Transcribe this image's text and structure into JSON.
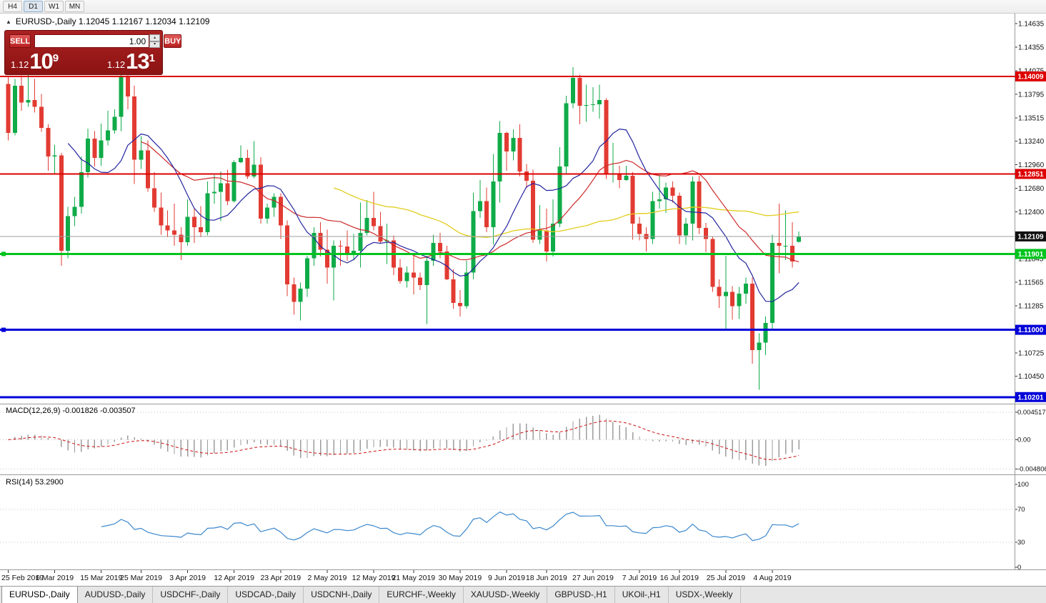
{
  "toolbar": {
    "timeframes": [
      {
        "label": "H4",
        "active": false
      },
      {
        "label": "D1",
        "active": true
      },
      {
        "label": "W1",
        "active": false
      },
      {
        "label": "MN",
        "active": false
      }
    ]
  },
  "chart_header": {
    "title": "EURUSD-,Daily  1.12045 1.12167 1.12034 1.12109"
  },
  "icons": {
    "collapse": "▲",
    "lot_up": "▴",
    "lot_down": "▾"
  },
  "trade_panel": {
    "sell_label": "SELL",
    "buy_label": "BUY",
    "lot_size": "1.00",
    "sell_price_prefix": "1.12",
    "sell_price_main": "10",
    "sell_price_pip": "9",
    "buy_price_prefix": "1.12",
    "buy_price_main": "13",
    "buy_price_pip": "1"
  },
  "indicators": {
    "macd_label": "MACD(12,26,9) -0.001826 -0.003507",
    "rsi_label": "RSI(14) 53.2900"
  },
  "tabs": [
    {
      "label": "EURUSD-,Daily",
      "active": true
    },
    {
      "label": "AUDUSD-,Daily",
      "active": false
    },
    {
      "label": "USDCHF-,Daily",
      "active": false
    },
    {
      "label": "USDCAD-,Daily",
      "active": false
    },
    {
      "label": "USDCNH-,Daily",
      "active": false
    },
    {
      "label": "EURCHF-,Weekly",
      "active": false
    },
    {
      "label": "XAUUSD-,Weekly",
      "active": false
    },
    {
      "label": "GBPUSD-,H1",
      "active": false
    },
    {
      "label": "UKOil-,H1",
      "active": false
    },
    {
      "label": "USDX-,Weekly",
      "active": false
    }
  ],
  "chart_data": {
    "type": "candlestick",
    "symbol": "EURUSD-",
    "timeframe": "Daily",
    "quote": {
      "open": 1.12045,
      "high": 1.12167,
      "low": 1.12034,
      "close": 1.12109
    },
    "colors": {
      "bull": "#0fab48",
      "bear": "#e23b32",
      "ma_fast": "#24249e",
      "ma_mid": "#cd2929",
      "ma_slow": "#e2cd1c",
      "macd_histogram": "#9c9c9c",
      "macd_signal": "#cc1111",
      "rsi_line": "#3b87cc",
      "price_tag": "#111111",
      "resistance": "#dd0000",
      "support_green": "#00c41d",
      "support_blue": "#0000d8"
    },
    "price_axis_labels": [
      "1.14635",
      "1.14355",
      "1.14075",
      "1.13795",
      "1.13515",
      "1.13240",
      "1.12960",
      "1.12680",
      "1.12400",
      "1.11845",
      "1.11565",
      "1.11285",
      "1.10725",
      "1.10450"
    ],
    "hlines": [
      {
        "label": "1.14009",
        "value": 1.14009,
        "color": "#dd0000",
        "width": 2,
        "handle": false
      },
      {
        "label": "1.12851",
        "value": 1.12851,
        "color": "#dd0000",
        "width": 2,
        "handle": false
      },
      {
        "label": "1.11901",
        "value": 1.11901,
        "color": "#00c41d",
        "width": 3,
        "handle": true
      },
      {
        "label": "1.11000",
        "value": 1.11,
        "color": "#0000d8",
        "width": 3,
        "handle": true
      },
      {
        "label": "1.10201",
        "value": 1.10201,
        "color": "#0000d8",
        "width": 3,
        "handle": false
      }
    ],
    "current_price": {
      "label": "1.12109",
      "value": 1.12109
    },
    "macd_axis": [
      {
        "label": "0.004517",
        "value": 0.004517
      },
      {
        "label": "0.00",
        "value": 0
      },
      {
        "label": "-0.004806",
        "value": -0.004806
      }
    ],
    "rsi_axis": [
      {
        "label": "100",
        "value": 100
      },
      {
        "label": "70",
        "value": 70
      },
      {
        "label": "30",
        "value": 30
      },
      {
        "label": "0",
        "value": 0
      }
    ],
    "rsi_levels": [
      70,
      30
    ],
    "date_labels": [
      {
        "label": "25 Feb 2019",
        "index": 0
      },
      {
        "label": "6 Mar 2019",
        "index": 7
      },
      {
        "label": "15 Mar 2019",
        "index": 14
      },
      {
        "label": "25 Mar 2019",
        "index": 20
      },
      {
        "label": "3 Apr 2019",
        "index": 27
      },
      {
        "label": "12 Apr 2019",
        "index": 34
      },
      {
        "label": "23 Apr 2019",
        "index": 41
      },
      {
        "label": "2 May 2019",
        "index": 48
      },
      {
        "label": "12 May 2019",
        "index": 55
      },
      {
        "label": "21 May 2019",
        "index": 61
      },
      {
        "label": "30 May 2019",
        "index": 68
      },
      {
        "label": "9 Jun 2019",
        "index": 75
      },
      {
        "label": "18 Jun 2019",
        "index": 81
      },
      {
        "label": "27 Jun 2019",
        "index": 88
      },
      {
        "label": "7 Jul 2019",
        "index": 95
      },
      {
        "label": "16 Jul 2019",
        "index": 101
      },
      {
        "label": "25 Jul 2019",
        "index": 108
      },
      {
        "label": "4 Aug 2019",
        "index": 115
      }
    ],
    "candles": [
      [
        1.1392,
        1.14,
        1.1325,
        1.1334
      ],
      [
        1.1334,
        1.1398,
        1.1331,
        1.139
      ],
      [
        1.139,
        1.1402,
        1.136,
        1.137
      ],
      [
        1.137,
        1.1404,
        1.1365,
        1.1373
      ],
      [
        1.1373,
        1.1398,
        1.1358,
        1.1365
      ],
      [
        1.1365,
        1.138,
        1.1335,
        1.134
      ],
      [
        1.134,
        1.1344,
        1.1289,
        1.1306
      ],
      [
        1.1306,
        1.132,
        1.1285,
        1.1307
      ],
      [
        1.1307,
        1.131,
        1.1176,
        1.1194
      ],
      [
        1.1194,
        1.1246,
        1.1185,
        1.1235
      ],
      [
        1.1235,
        1.1258,
        1.1223,
        1.1246
      ],
      [
        1.1246,
        1.1306,
        1.1238,
        1.1287
      ],
      [
        1.1287,
        1.1339,
        1.1281,
        1.1327
      ],
      [
        1.1327,
        1.1336,
        1.1294,
        1.1304
      ],
      [
        1.1304,
        1.1345,
        1.1295,
        1.1325
      ],
      [
        1.1325,
        1.136,
        1.1319,
        1.1337
      ],
      [
        1.1337,
        1.1362,
        1.1333,
        1.1353
      ],
      [
        1.1353,
        1.1414,
        1.1336,
        1.1401
      ],
      [
        1.1401,
        1.1411,
        1.1362,
        1.1377
      ],
      [
        1.1377,
        1.139,
        1.1273,
        1.1302
      ],
      [
        1.1302,
        1.133,
        1.1291,
        1.1313
      ],
      [
        1.1313,
        1.1325,
        1.1264,
        1.1268
      ],
      [
        1.1268,
        1.1287,
        1.124,
        1.1245
      ],
      [
        1.1245,
        1.1263,
        1.1213,
        1.1224
      ],
      [
        1.1224,
        1.1242,
        1.121,
        1.1218
      ],
      [
        1.1218,
        1.125,
        1.12,
        1.1213
      ],
      [
        1.1213,
        1.1222,
        1.1183,
        1.1204
      ],
      [
        1.1204,
        1.1255,
        1.12,
        1.1234
      ],
      [
        1.1234,
        1.1244,
        1.1203,
        1.1222
      ],
      [
        1.1222,
        1.1247,
        1.121,
        1.1216
      ],
      [
        1.1216,
        1.1276,
        1.1212,
        1.1262
      ],
      [
        1.1262,
        1.1284,
        1.125,
        1.1264
      ],
      [
        1.1264,
        1.1288,
        1.1229,
        1.1274
      ],
      [
        1.1274,
        1.129,
        1.1248,
        1.1253
      ],
      [
        1.1253,
        1.1301,
        1.1251,
        1.1299
      ],
      [
        1.1299,
        1.1319,
        1.1298,
        1.1304
      ],
      [
        1.1304,
        1.1314,
        1.1279,
        1.1282
      ],
      [
        1.1282,
        1.1324,
        1.128,
        1.1296
      ],
      [
        1.1296,
        1.1305,
        1.1226,
        1.1232
      ],
      [
        1.1232,
        1.125,
        1.1226,
        1.1245
      ],
      [
        1.1245,
        1.1262,
        1.1234,
        1.1258
      ],
      [
        1.1258,
        1.1262,
        1.1208,
        1.1224
      ],
      [
        1.1224,
        1.123,
        1.114,
        1.1154
      ],
      [
        1.1154,
        1.1162,
        1.1118,
        1.1133
      ],
      [
        1.1133,
        1.1156,
        1.1111,
        1.1149
      ],
      [
        1.1149,
        1.1188,
        1.1139,
        1.1185
      ],
      [
        1.1185,
        1.1222,
        1.1176,
        1.1215
      ],
      [
        1.1215,
        1.1228,
        1.1187,
        1.1195
      ],
      [
        1.1195,
        1.1219,
        1.1155,
        1.1174
      ],
      [
        1.1174,
        1.1206,
        1.1135,
        1.12
      ],
      [
        1.12,
        1.1206,
        1.1176,
        1.1199
      ],
      [
        1.1199,
        1.1218,
        1.1182,
        1.119
      ],
      [
        1.119,
        1.1214,
        1.1183,
        1.1194
      ],
      [
        1.1194,
        1.1251,
        1.1174,
        1.1215
      ],
      [
        1.1215,
        1.1254,
        1.1212,
        1.1233
      ],
      [
        1.1233,
        1.1264,
        1.1218,
        1.1223
      ],
      [
        1.1223,
        1.124,
        1.1203,
        1.1205
      ],
      [
        1.1205,
        1.1226,
        1.1178,
        1.1206
      ],
      [
        1.1206,
        1.1212,
        1.1165,
        1.1174
      ],
      [
        1.1174,
        1.1184,
        1.1155,
        1.1158
      ],
      [
        1.1158,
        1.1175,
        1.115,
        1.1168
      ],
      [
        1.1168,
        1.1188,
        1.1142,
        1.1162
      ],
      [
        1.1162,
        1.1168,
        1.1147,
        1.1153
      ],
      [
        1.1153,
        1.1188,
        1.1107,
        1.1182
      ],
      [
        1.1182,
        1.1213,
        1.1176,
        1.1203
      ],
      [
        1.1203,
        1.1215,
        1.1185,
        1.1193
      ],
      [
        1.1193,
        1.12,
        1.1159,
        1.116
      ],
      [
        1.116,
        1.1172,
        1.1125,
        1.1132
      ],
      [
        1.1132,
        1.1147,
        1.1116,
        1.1128
      ],
      [
        1.1128,
        1.1182,
        1.1125,
        1.1168
      ],
      [
        1.1168,
        1.1263,
        1.116,
        1.1241
      ],
      [
        1.1241,
        1.1278,
        1.1233,
        1.1253
      ],
      [
        1.1253,
        1.1269,
        1.1216,
        1.1222
      ],
      [
        1.1222,
        1.1309,
        1.1201,
        1.1276
      ],
      [
        1.1276,
        1.1348,
        1.1251,
        1.1334
      ],
      [
        1.1334,
        1.1335,
        1.1289,
        1.1312
      ],
      [
        1.1312,
        1.1338,
        1.1301,
        1.1328
      ],
      [
        1.1328,
        1.1344,
        1.1282,
        1.1288
      ],
      [
        1.1288,
        1.1297,
        1.1268,
        1.1277
      ],
      [
        1.1277,
        1.129,
        1.1203,
        1.1207
      ],
      [
        1.1207,
        1.1248,
        1.1202,
        1.1218
      ],
      [
        1.1218,
        1.1244,
        1.1181,
        1.1193
      ],
      [
        1.1193,
        1.1255,
        1.1187,
        1.1226
      ],
      [
        1.1226,
        1.1317,
        1.1222,
        1.1294
      ],
      [
        1.1294,
        1.1378,
        1.1286,
        1.1369
      ],
      [
        1.1369,
        1.1412,
        1.1363,
        1.1399
      ],
      [
        1.1399,
        1.1403,
        1.1344,
        1.1366
      ],
      [
        1.1366,
        1.1391,
        1.1347,
        1.1367
      ],
      [
        1.1367,
        1.1388,
        1.1359,
        1.1368
      ],
      [
        1.1368,
        1.1391,
        1.1351,
        1.1373
      ],
      [
        1.1373,
        1.1375,
        1.1279,
        1.1285
      ],
      [
        1.1285,
        1.1322,
        1.1275,
        1.1285
      ],
      [
        1.1285,
        1.1295,
        1.1268,
        1.1278
      ],
      [
        1.1278,
        1.1295,
        1.1277,
        1.1283
      ],
      [
        1.1283,
        1.1287,
        1.1207,
        1.1226
      ],
      [
        1.1226,
        1.1234,
        1.1206,
        1.1214
      ],
      [
        1.1214,
        1.1222,
        1.1193,
        1.1208
      ],
      [
        1.1208,
        1.1264,
        1.1202,
        1.1253
      ],
      [
        1.1253,
        1.1286,
        1.1244,
        1.1255
      ],
      [
        1.1255,
        1.1275,
        1.1239,
        1.1269
      ],
      [
        1.1269,
        1.1276,
        1.1251,
        1.1259
      ],
      [
        1.1259,
        1.1263,
        1.1202,
        1.1212
      ],
      [
        1.1212,
        1.1233,
        1.1201,
        1.1226
      ],
      [
        1.1226,
        1.1282,
        1.1206,
        1.1276
      ],
      [
        1.1276,
        1.1283,
        1.1214,
        1.1221
      ],
      [
        1.1221,
        1.1227,
        1.1192,
        1.1208
      ],
      [
        1.1208,
        1.1211,
        1.1145,
        1.1151
      ],
      [
        1.1151,
        1.116,
        1.1126,
        1.114
      ],
      [
        1.114,
        1.1188,
        1.1101,
        1.1145
      ],
      [
        1.1145,
        1.1152,
        1.1112,
        1.1128
      ],
      [
        1.1128,
        1.1151,
        1.1113,
        1.1143
      ],
      [
        1.1143,
        1.1162,
        1.1131,
        1.1155
      ],
      [
        1.1155,
        1.1162,
        1.106,
        1.1076
      ],
      [
        1.1076,
        1.1096,
        1.1029,
        1.1085
      ],
      [
        1.1085,
        1.1116,
        1.107,
        1.1108
      ],
      [
        1.1108,
        1.1213,
        1.1101,
        1.1203
      ],
      [
        1.1203,
        1.125,
        1.1167,
        1.12
      ],
      [
        1.12,
        1.1242,
        1.1183,
        1.12
      ],
      [
        1.12,
        1.1228,
        1.1174,
        1.1181
      ],
      [
        1.12045,
        1.12167,
        1.12034,
        1.12109
      ]
    ]
  }
}
